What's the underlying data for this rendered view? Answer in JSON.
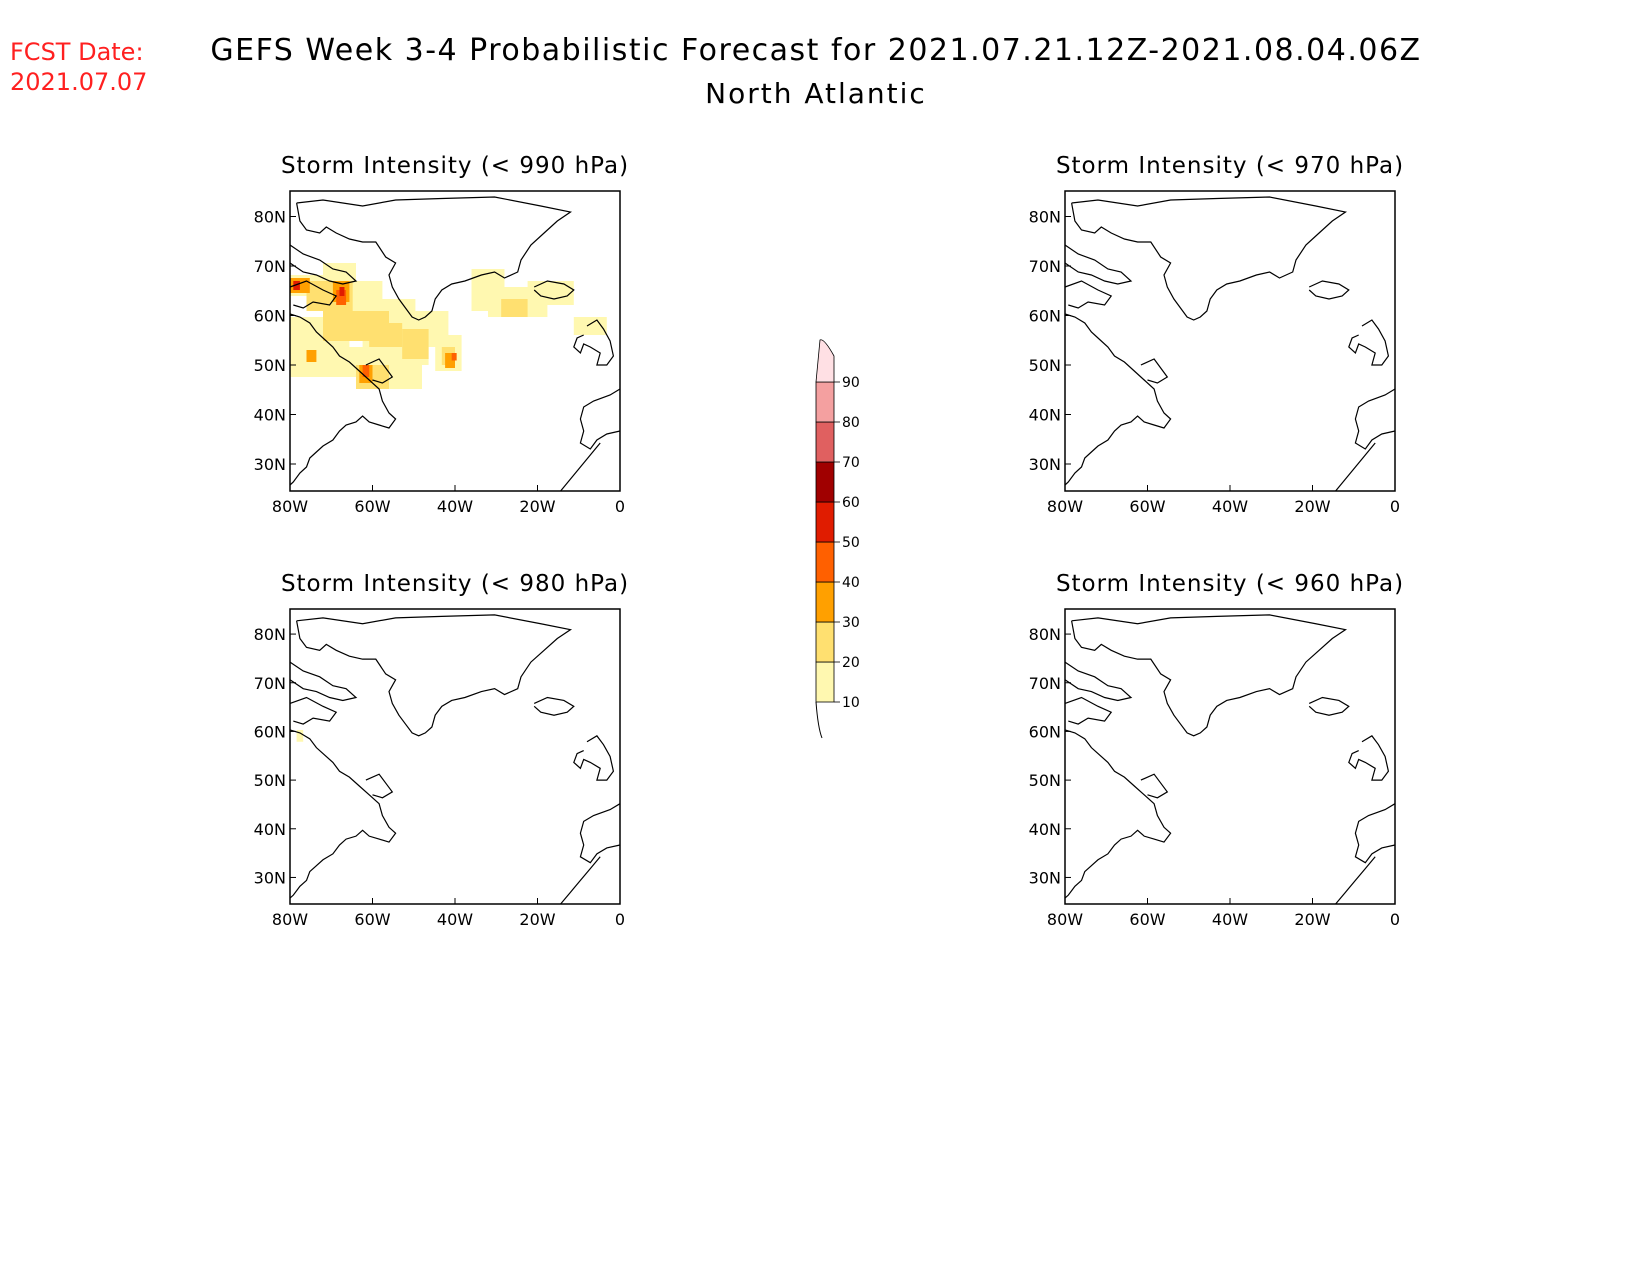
{
  "header": {
    "fcst_label": "FCST Date:",
    "fcst_date": "2021.07.07",
    "title": "GEFS Week 3-4 Probabilistic Forecast for 2021.07.21.12Z-2021.08.04.06Z",
    "subtitle": "North Atlantic"
  },
  "colors": {
    "fcst": "#ff2020",
    "scale": [
      "#fff8b0",
      "#ffe070",
      "#ffa000",
      "#ff6000",
      "#e01c00",
      "#a00000",
      "#e06060",
      "#f4a0a0",
      "#ffe0e4"
    ]
  },
  "axes": {
    "lon_ticks": [
      "80W",
      "60W",
      "40W",
      "20W",
      "0"
    ],
    "lat_ticks": [
      "80N",
      "70N",
      "60N",
      "50N",
      "40N",
      "30N"
    ]
  },
  "panels": [
    {
      "title": "Storm Intensity (< 990 hPa)"
    },
    {
      "title": "Storm Intensity (< 970 hPa)"
    },
    {
      "title": "Storm Intensity (< 980 hPa)"
    },
    {
      "title": "Storm Intensity (< 960 hPa)"
    }
  ],
  "colorbar": {
    "labels": [
      "10",
      "20",
      "30",
      "40",
      "50",
      "60",
      "70",
      "80",
      "90"
    ]
  }
}
